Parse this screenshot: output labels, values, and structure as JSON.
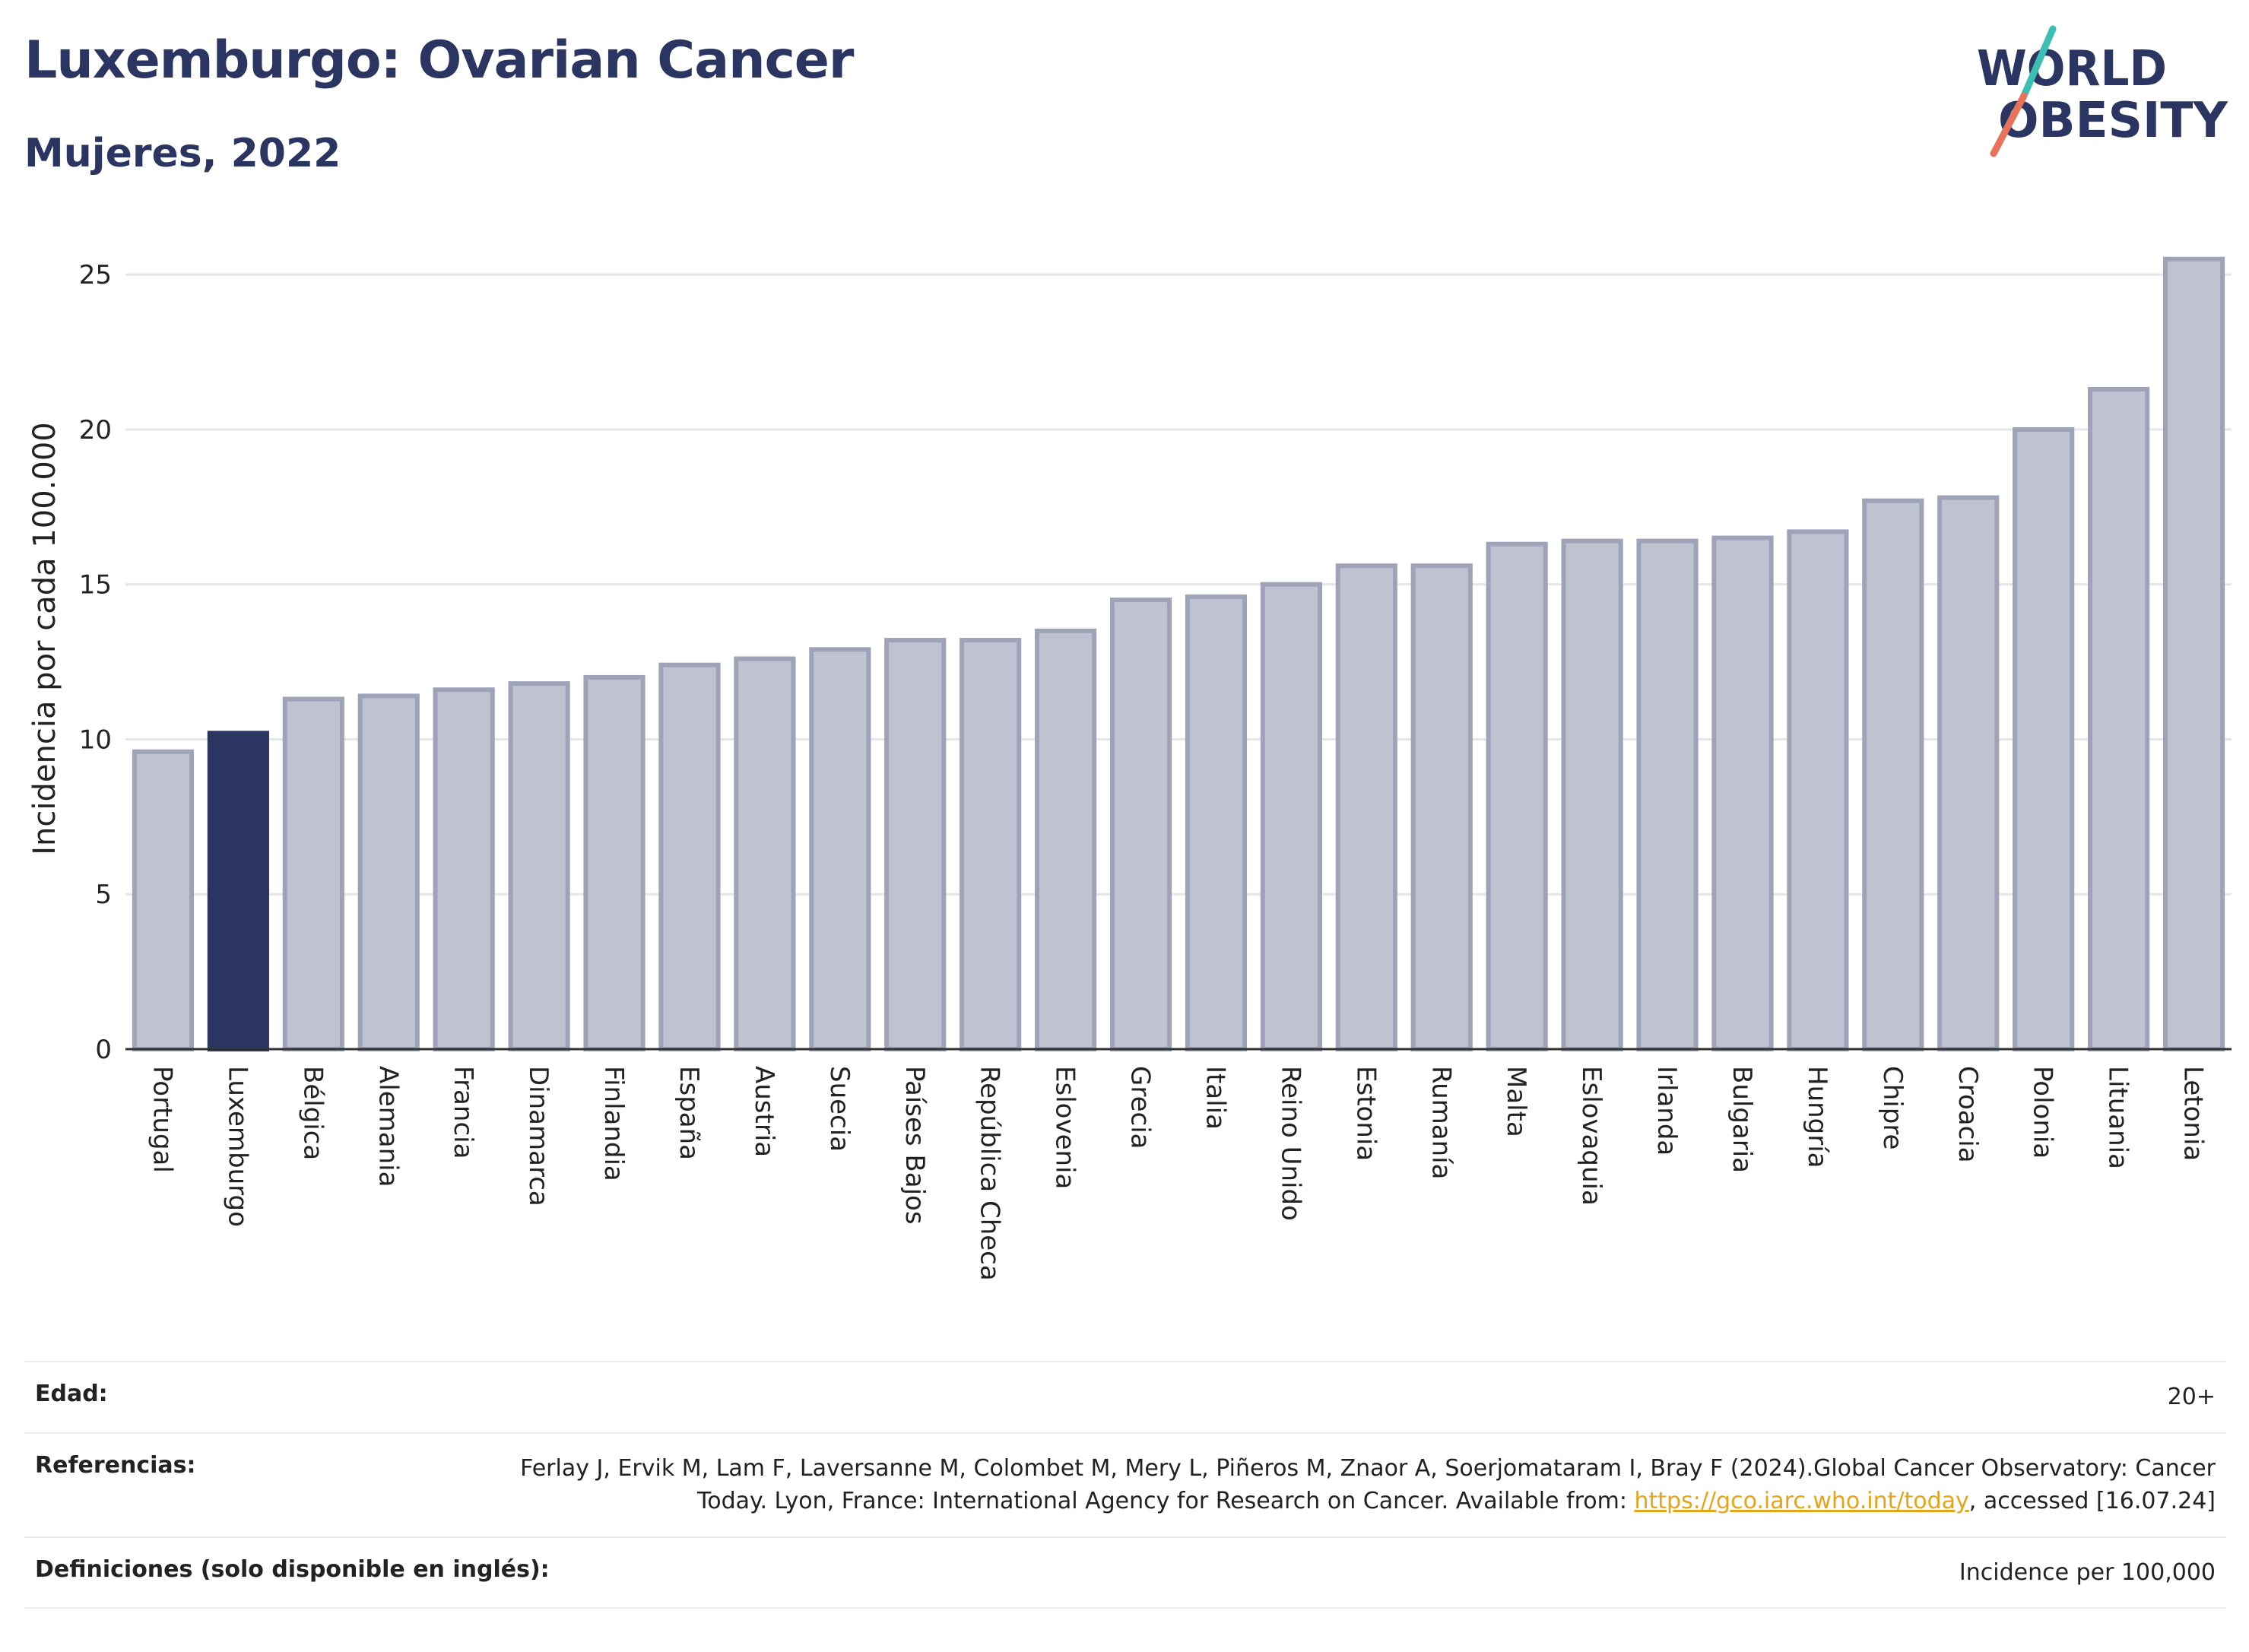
{
  "header": {
    "title": "Luxemburgo: Ovarian Cancer",
    "subtitle": "Mujeres, 2022"
  },
  "logo": {
    "line1": "WORLD",
    "line2": "OBESITY",
    "colors": {
      "text": "#2b3562",
      "slash_top": "#3bbfb4",
      "slash_bottom": "#e8735a"
    }
  },
  "colors": {
    "highlight": "#2b3562",
    "bar_fill": "#bfc2d0",
    "bar_stroke": "#9ea3b8",
    "grid": "#e6e6e6",
    "axis": "#333333"
  },
  "chart_data": {
    "type": "bar",
    "title": "",
    "xlabel": "",
    "ylabel": "Incidencia por cada 100.000",
    "ylim": [
      0,
      26.5
    ],
    "yticks": [
      0,
      5,
      10,
      15,
      20,
      25
    ],
    "grid": true,
    "highlight_category": "Luxemburgo",
    "categories": [
      "Portugal",
      "Luxemburgo",
      "Bélgica",
      "Alemania",
      "Francia",
      "Dinamarca",
      "Finlandia",
      "España",
      "Austria",
      "Suecia",
      "Países Bajos",
      "República Checa",
      "Eslovenia",
      "Grecia",
      "Italia",
      "Reino Unido",
      "Estonia",
      "Rumanía",
      "Malta",
      "Eslovaquia",
      "Irlanda",
      "Bulgaria",
      "Hungría",
      "Chipre",
      "Croacia",
      "Polonia",
      "Lituania",
      "Letonia"
    ],
    "values": [
      9.6,
      10.2,
      11.3,
      11.4,
      11.6,
      11.8,
      12.0,
      12.4,
      12.6,
      12.9,
      13.2,
      13.2,
      13.5,
      14.5,
      14.6,
      15.0,
      15.6,
      15.6,
      16.3,
      16.4,
      16.4,
      16.5,
      16.7,
      17.7,
      17.8,
      20.0,
      21.3,
      25.5
    ]
  },
  "footer": {
    "age_label": "Edad:",
    "age_value": "20+",
    "refs_label": "Referencias:",
    "refs_text_before": "Ferlay J, Ervik M, Lam F, Laversanne M, Colombet M, Mery L, Piñeros M, Znaor A, Soerjomataram I, Bray F (2024).Global Cancer Observatory: Cancer Today. Lyon, France: International Agency for Research on Cancer. Available from: ",
    "refs_link": "https://gco.iarc.who.int/today",
    "refs_text_after": ", accessed [16.07.24]",
    "defs_label": "Definiciones (solo disponible en inglés):",
    "defs_value": "Incidence per 100,000"
  }
}
